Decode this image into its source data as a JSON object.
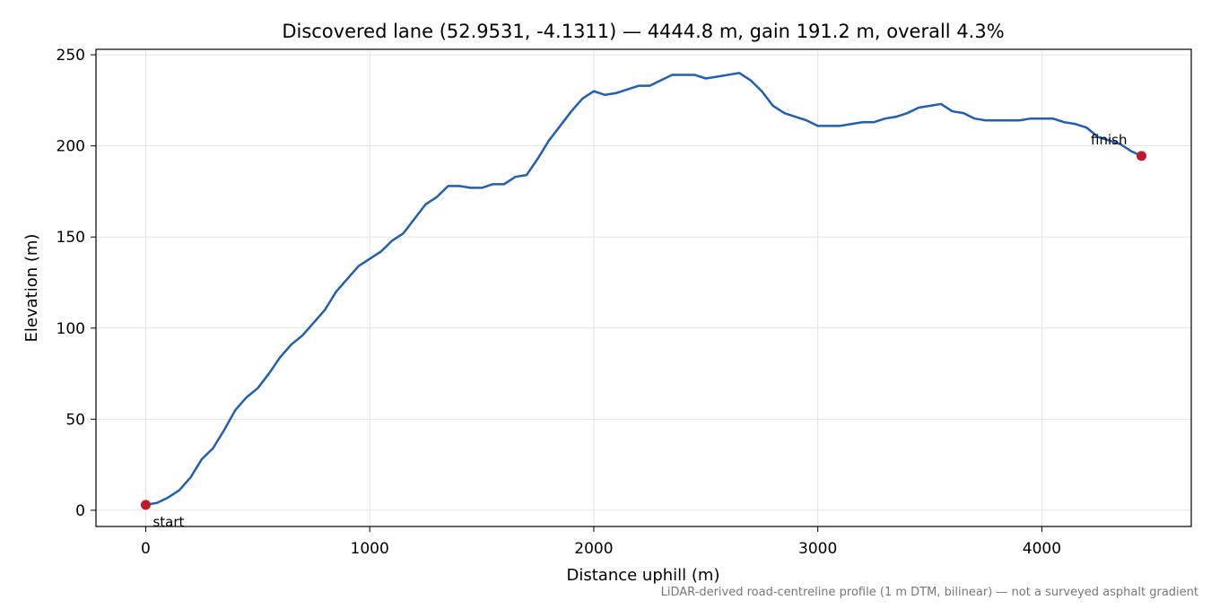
{
  "chart_data": {
    "type": "line",
    "title": "Discovered lane (52.9531, -4.1311) — 4444.8 m, gain 191.2 m, overall 4.3%",
    "x_label": "Distance uphill (m)",
    "y_label": "Elevation (m)",
    "note": "LiDAR-derived road-centreline profile (1 m DTM, bilinear) — not a surveyed asphalt gradient",
    "xlim": [
      -222,
      4667
    ],
    "ylim": [
      -8.9,
      253
    ],
    "xticks": [
      0,
      1000,
      2000,
      3000,
      4000
    ],
    "yticks": [
      0,
      50,
      100,
      150,
      200,
      250
    ],
    "grid": true,
    "series": [
      {
        "color": "#1f5fb4",
        "x": [
          0,
          50,
          100,
          150,
          200,
          250,
          300,
          350,
          400,
          450,
          500,
          550,
          600,
          650,
          700,
          750,
          800,
          850,
          900,
          950,
          1000,
          1050,
          1100,
          1150,
          1200,
          1250,
          1300,
          1350,
          1400,
          1450,
          1500,
          1550,
          1600,
          1650,
          1700,
          1750,
          1800,
          1850,
          1900,
          1950,
          2000,
          2050,
          2100,
          2150,
          2200,
          2250,
          2300,
          2350,
          2400,
          2450,
          2500,
          2550,
          2600,
          2650,
          2700,
          2750,
          2800,
          2850,
          2900,
          2950,
          3000,
          3050,
          3100,
          3150,
          3200,
          3250,
          3300,
          3350,
          3400,
          3450,
          3500,
          3550,
          3600,
          3650,
          3700,
          3750,
          3800,
          3850,
          3900,
          3950,
          4000,
          4050,
          4100,
          4150,
          4200,
          4250,
          4300,
          4350,
          4400,
          4444.8
        ],
        "values": [
          3,
          4,
          7,
          11,
          18,
          28,
          34,
          44,
          55,
          62,
          67,
          75,
          84,
          91,
          96,
          103,
          110,
          120,
          127,
          134,
          138,
          142,
          148,
          152,
          160,
          168,
          172,
          178,
          178,
          177,
          177,
          179,
          179,
          183,
          184,
          193,
          203,
          211,
          219,
          226,
          230,
          228,
          229,
          231,
          233,
          233,
          236,
          239,
          239,
          239,
          237,
          238,
          239,
          240,
          236,
          230,
          222,
          218,
          216,
          214,
          211,
          211,
          211,
          212,
          213,
          213,
          215,
          216,
          218,
          221,
          222,
          223,
          219,
          218,
          215,
          214,
          214,
          214,
          214,
          215,
          215,
          215,
          213,
          212,
          210,
          205,
          203,
          201,
          197,
          194.5
        ]
      }
    ],
    "points": [
      {
        "label": "start",
        "x": 0,
        "y": 3,
        "color": "#c0192c"
      },
      {
        "label": "finish",
        "x": 4444.8,
        "y": 194.5,
        "color": "#c0192c"
      }
    ]
  }
}
